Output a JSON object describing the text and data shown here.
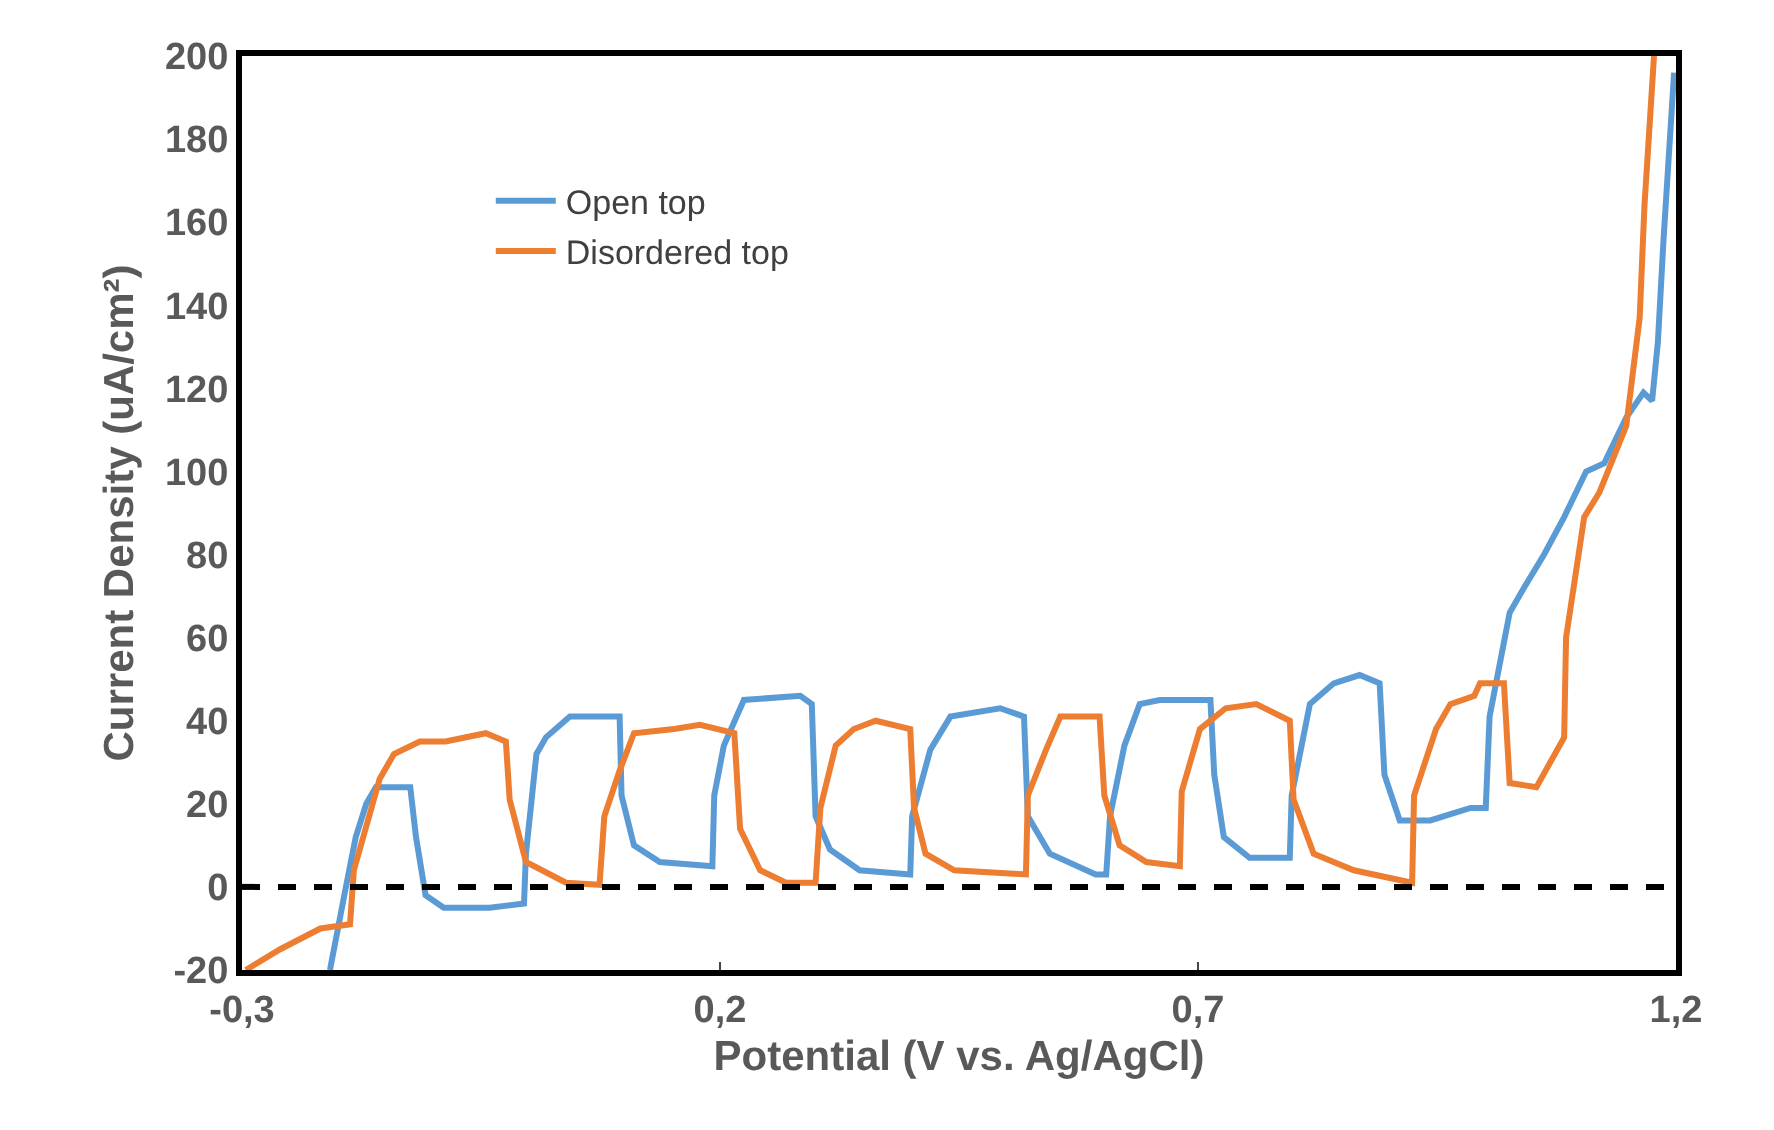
{
  "chart_data": {
    "type": "line",
    "xlabel": "Potential (V vs. Ag/AgCl)",
    "ylabel": "Current Density (uA/cm²)",
    "xlim": [
      -0.3,
      1.2
    ],
    "xticks": [
      {
        "value": -0.3,
        "label": "-0,3"
      },
      {
        "value": 0.2,
        "label": "0,2"
      },
      {
        "value": 0.7,
        "label": "0,7"
      },
      {
        "value": 1.2,
        "label": "1,2"
      }
    ],
    "ylim": [
      -20,
      200
    ],
    "yticks": [
      -20,
      0,
      20,
      40,
      60,
      80,
      100,
      120,
      140,
      160,
      180,
      200
    ],
    "grid": false,
    "legend": "top left",
    "marker": "none",
    "line_style": "solid",
    "ref_lines": [
      {
        "axis": "y",
        "value": 0,
        "label": null,
        "color": "#000000",
        "line_style": "dashed"
      }
    ],
    "series": [
      {
        "name": "Open top",
        "color": "#5b9bd5",
        "x": [
          -0.208,
          -0.193,
          -0.181,
          -0.17,
          -0.16,
          -0.124,
          -0.118,
          -0.108,
          -0.089,
          -0.041,
          -0.005,
          -0.003,
          0.008,
          0.018,
          0.043,
          0.095,
          0.097,
          0.11,
          0.137,
          0.192,
          0.194,
          0.204,
          0.225,
          0.284,
          0.296,
          0.3,
          0.315,
          0.346,
          0.399,
          0.401,
          0.42,
          0.441,
          0.493,
          0.518,
          0.522,
          0.545,
          0.593,
          0.604,
          0.608,
          0.623,
          0.639,
          0.66,
          0.713,
          0.717,
          0.727,
          0.754,
          0.796,
          0.798,
          0.817,
          0.842,
          0.869,
          0.89,
          0.895,
          0.911,
          0.943,
          0.985,
          1.001,
          1.005,
          1.026,
          1.041,
          1.062,
          1.083,
          1.106,
          1.125,
          1.148,
          1.166,
          1.175,
          1.181,
          1.187,
          1.198
        ],
        "values": [
          -20,
          -2,
          12,
          20,
          24,
          24,
          12,
          -2,
          -5,
          -5,
          -4,
          8,
          32,
          36,
          41,
          41,
          22,
          10,
          6,
          5,
          22,
          34,
          45,
          46,
          44,
          17,
          9,
          4,
          3,
          17,
          33,
          41,
          43,
          41,
          17,
          8,
          3,
          3,
          17,
          34,
          44,
          45,
          45,
          27,
          12,
          7,
          7,
          22,
          44,
          49,
          51,
          49,
          27,
          16,
          16,
          19,
          19,
          41,
          66,
          72,
          80,
          89,
          100,
          102,
          113,
          119,
          117,
          131,
          156,
          196
        ]
      },
      {
        "name": "Disordered top",
        "color": "#ed7d31",
        "x": [
          -0.296,
          -0.26,
          -0.218,
          -0.187,
          -0.183,
          -0.156,
          -0.141,
          -0.114,
          -0.087,
          -0.045,
          -0.024,
          -0.02,
          -0.003,
          0.039,
          0.074,
          0.079,
          0.095,
          0.11,
          0.152,
          0.179,
          0.215,
          0.221,
          0.242,
          0.269,
          0.3,
          0.305,
          0.321,
          0.34,
          0.363,
          0.399,
          0.403,
          0.415,
          0.445,
          0.52,
          0.522,
          0.541,
          0.556,
          0.597,
          0.602,
          0.618,
          0.646,
          0.681,
          0.683,
          0.702,
          0.729,
          0.761,
          0.796,
          0.8,
          0.821,
          0.863,
          0.924,
          0.926,
          0.949,
          0.964,
          0.989,
          0.995,
          1.02,
          1.026,
          1.054,
          1.083,
          1.085,
          1.104,
          1.12,
          1.148,
          1.162,
          1.167,
          1.177
        ],
        "values": [
          -20,
          -15,
          -10,
          -9,
          4,
          26,
          32,
          35,
          35,
          37,
          35,
          21,
          6,
          1,
          0.5,
          17,
          28,
          37,
          38,
          39,
          37,
          14,
          4,
          1,
          1,
          19,
          34,
          38,
          40,
          38,
          19,
          8,
          4,
          3,
          22,
          33,
          41,
          41,
          22,
          10,
          6,
          5,
          23,
          38,
          43,
          44,
          40,
          21,
          8,
          4,
          1,
          22,
          38,
          44,
          46,
          49,
          49,
          25,
          24,
          36,
          60,
          89,
          95,
          111,
          137,
          164,
          200
        ]
      }
    ]
  }
}
